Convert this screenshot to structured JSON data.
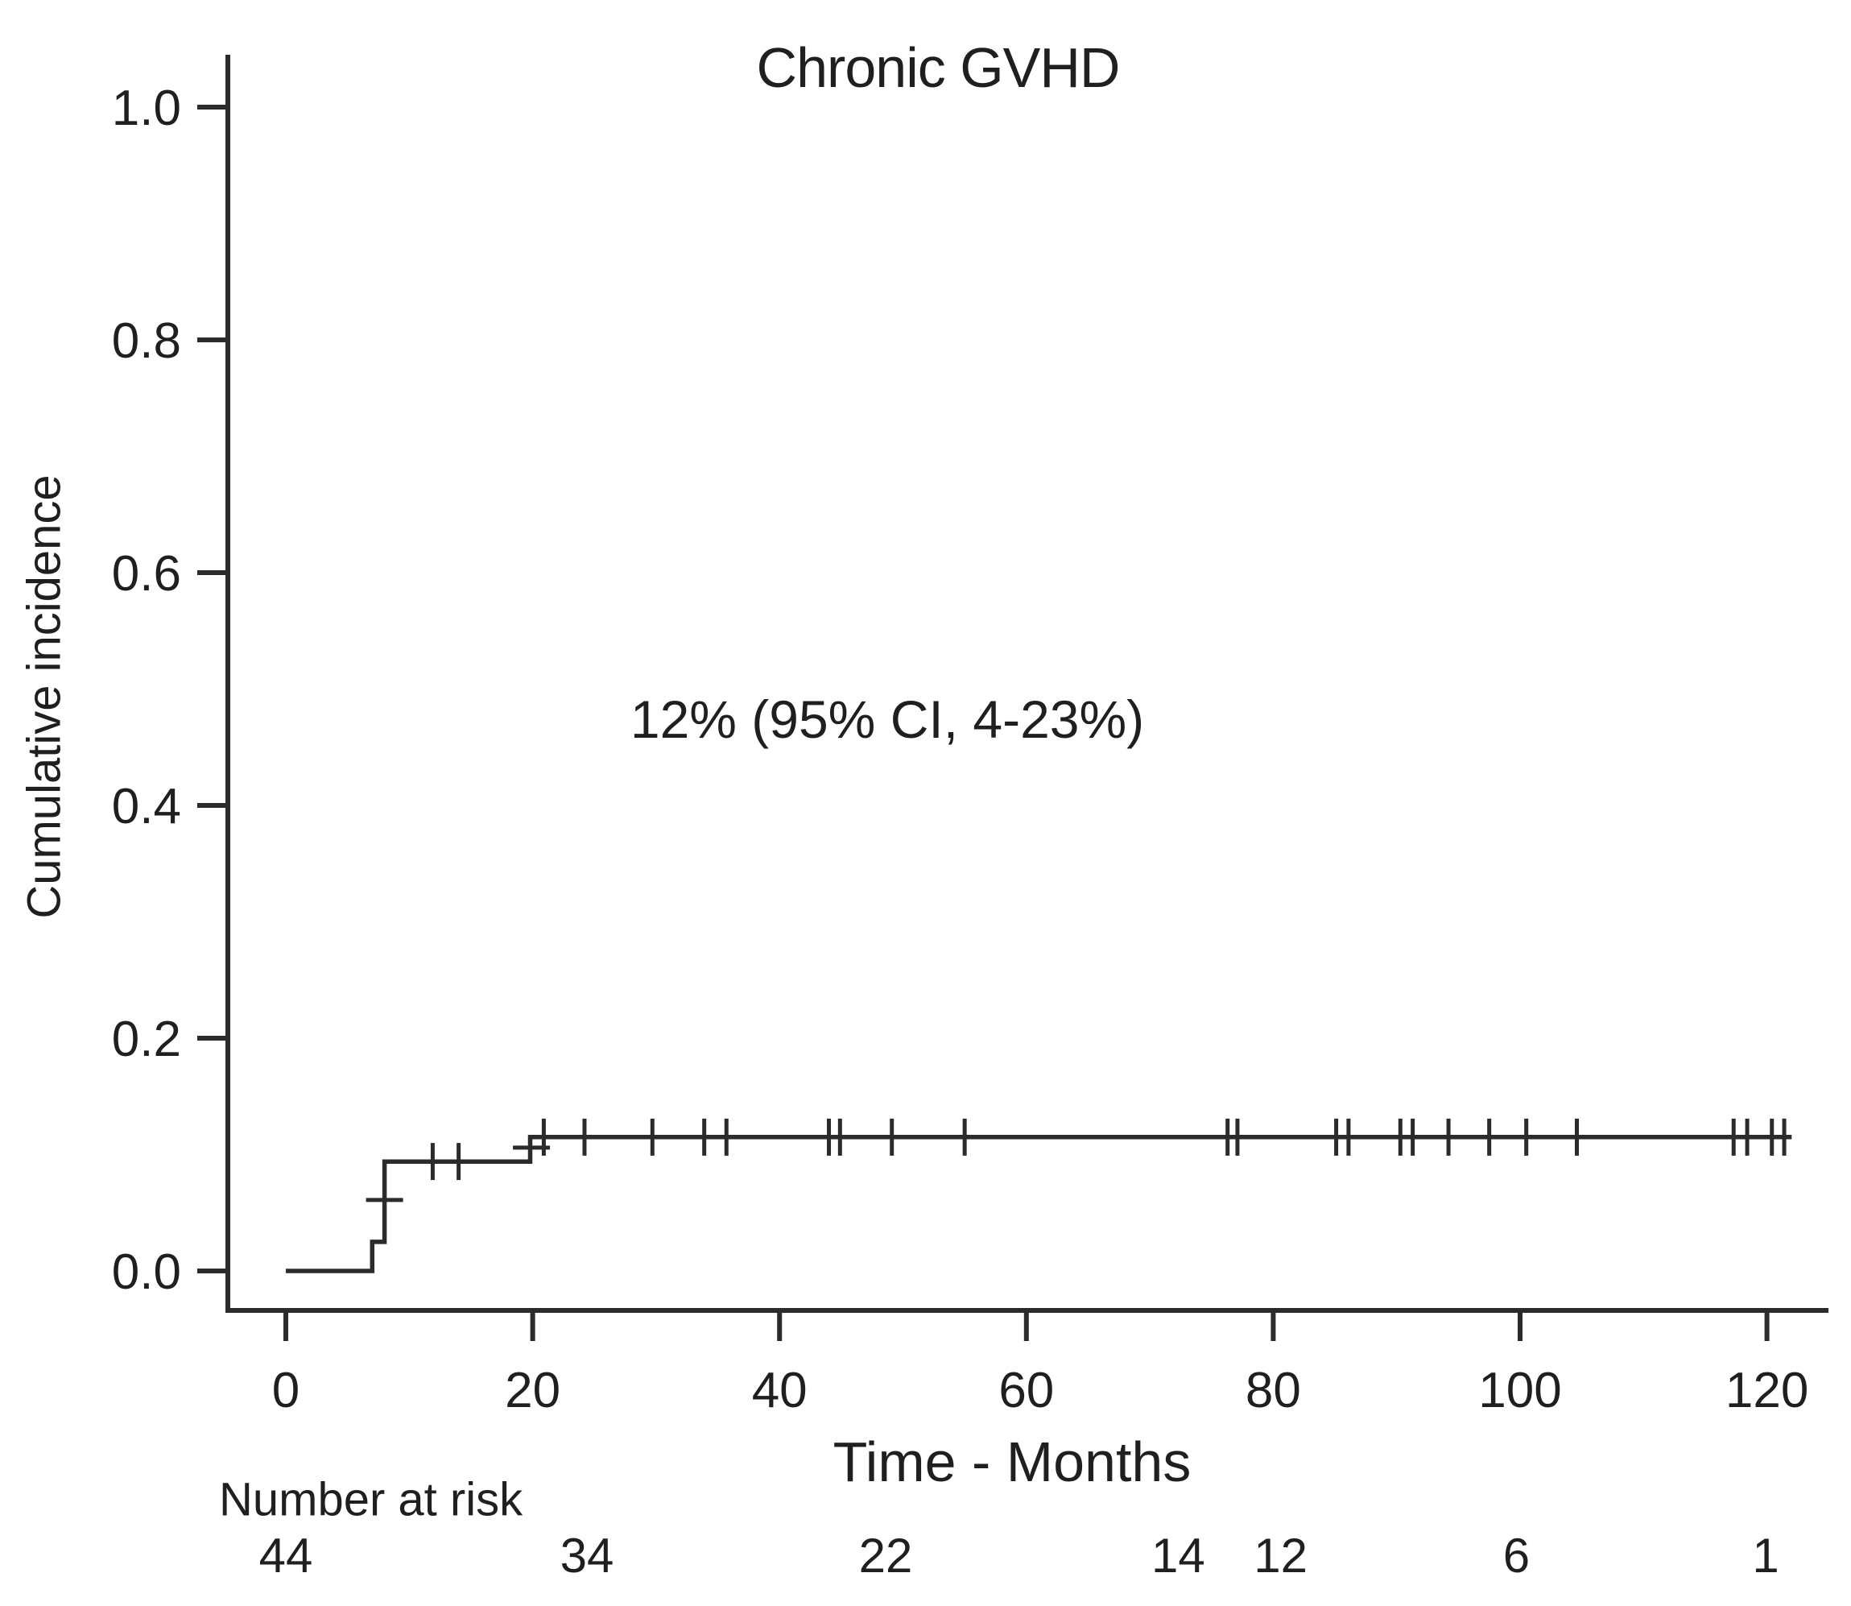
{
  "colors": {
    "background": "#ffffff",
    "line": "#2b2b2b",
    "text": "#1f1f1f"
  },
  "chart_data": {
    "type": "line",
    "subtype": "cumulative-incidence-step-curve",
    "title": "Chronic GVHD",
    "xlabel": "Time - Months",
    "ylabel": "Cumulative incidence",
    "xlim": [
      0,
      125
    ],
    "ylim": [
      0,
      1.0
    ],
    "grid": false,
    "legend": "none",
    "x_ticks": [
      0,
      20,
      40,
      60,
      80,
      100,
      120
    ],
    "y_ticks": [
      "0.0",
      "0.2",
      "0.4",
      "0.6",
      "0.8",
      "1.0"
    ],
    "steps": [
      [
        0,
        0
      ],
      [
        7.0,
        0
      ],
      [
        7.0,
        0.025
      ],
      [
        8.0,
        0.025
      ],
      [
        8.0,
        0.094
      ],
      [
        19.8,
        0.094
      ],
      [
        19.8,
        0.115
      ],
      [
        122.0,
        0.115
      ]
    ],
    "censor_ticks": [
      {
        "t": 11.9,
        "v": 0.094
      },
      {
        "t": 14.0,
        "v": 0.094
      },
      {
        "t": 20.9,
        "v": 0.115
      },
      {
        "t": 24.2,
        "v": 0.115
      },
      {
        "t": 29.7,
        "v": 0.115
      },
      {
        "t": 33.9,
        "v": 0.115
      },
      {
        "t": 35.7,
        "v": 0.115
      },
      {
        "t": 44.0,
        "v": 0.115
      },
      {
        "t": 44.9,
        "v": 0.115
      },
      {
        "t": 49.1,
        "v": 0.115
      },
      {
        "t": 55.0,
        "v": 0.115
      },
      {
        "t": 76.3,
        "v": 0.115
      },
      {
        "t": 77.1,
        "v": 0.115
      },
      {
        "t": 85.1,
        "v": 0.115
      },
      {
        "t": 86.1,
        "v": 0.115
      },
      {
        "t": 90.3,
        "v": 0.115
      },
      {
        "t": 91.3,
        "v": 0.115
      },
      {
        "t": 94.2,
        "v": 0.115
      },
      {
        "t": 97.5,
        "v": 0.115
      },
      {
        "t": 100.5,
        "v": 0.115
      },
      {
        "t": 104.6,
        "v": 0.115
      },
      {
        "t": 117.3,
        "v": 0.115
      },
      {
        "t": 118.4,
        "v": 0.115
      },
      {
        "t": 120.4,
        "v": 0.115
      },
      {
        "t": 121.4,
        "v": 0.115
      }
    ],
    "censor_plus_on_steps": [
      {
        "t": 8.0,
        "v": 0.061
      },
      {
        "t": 19.9,
        "v": 0.106
      }
    ],
    "annotation": {
      "text": "12% (95% CI, 4-23%)",
      "t": 48.6,
      "v": 0.47
    },
    "risk_table": {
      "label": "Number at risk",
      "values": [
        "44",
        "34",
        "22",
        "14",
        "12",
        "6",
        "1"
      ],
      "positions_months": [
        0,
        24.4,
        48.6,
        72.3,
        80.6,
        99.7,
        119.9
      ]
    }
  }
}
